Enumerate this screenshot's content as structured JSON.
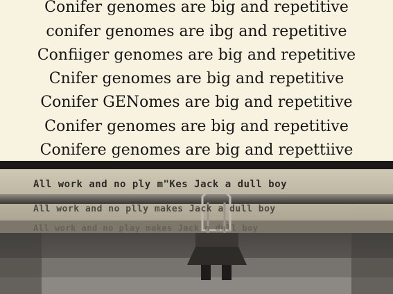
{
  "lines": [
    "Conifer genomes are big and repetitive",
    "conifer genomes are ibg and repetitive",
    "Confiiger genomes are big and repetitive",
    "Cnifer genomes are big and repetitive",
    "Conifer GENomes are big and repetitive",
    "Conifer genomes are big and repetitive",
    "Conifere genomes are big and repettiive"
  ],
  "typewriter": {
    "line1": "All work and no ply m\"Kes Jack a dull boy",
    "line2": "All work and no plly makes Jack a dull boy",
    "line3": "All work and no play makes Jack a dull boy"
  }
}
